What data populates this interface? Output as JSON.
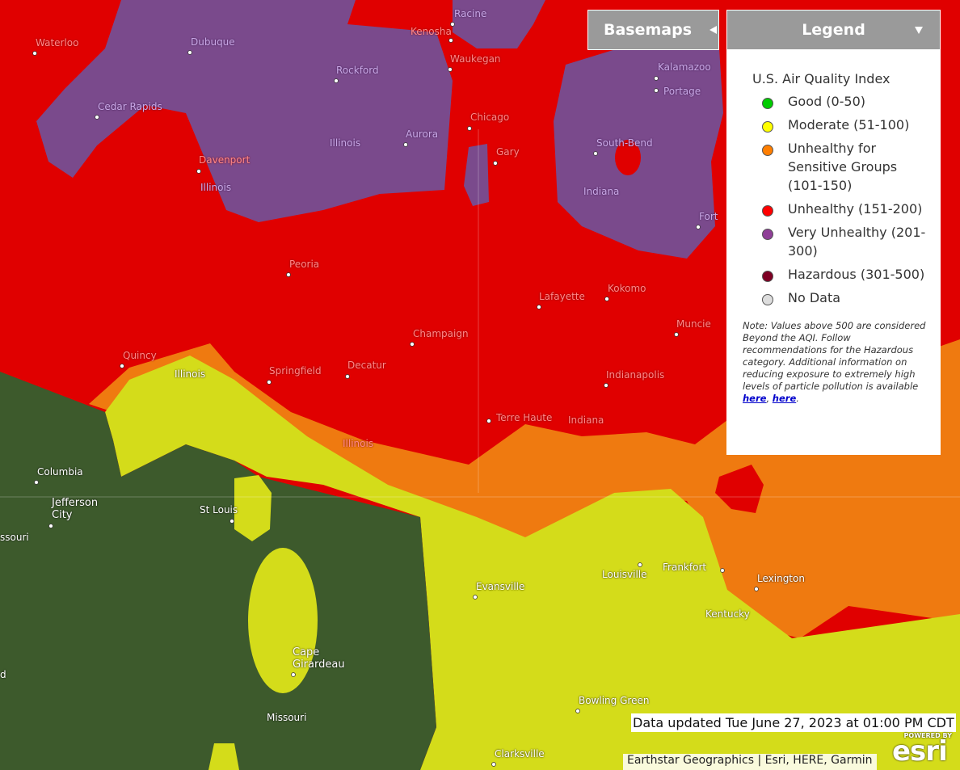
{
  "toolbar": {
    "basemaps": "Basemaps",
    "legend": "Legend"
  },
  "legend": {
    "title": "U.S. Air Quality Index",
    "items": [
      {
        "label": "Good (0-50)",
        "color": "#00cc00"
      },
      {
        "label": "Moderate (51-100)",
        "color": "#ffff00"
      },
      {
        "label": "Unhealthy for Sensitive Groups (101-150)",
        "color": "#ff7e00"
      },
      {
        "label": "Unhealthy (151-200)",
        "color": "#ff0000"
      },
      {
        "label": "Very Unhealthy (201-300)",
        "color": "#8f3f97"
      },
      {
        "label": "Hazardous (301-500)",
        "color": "#7e0023"
      },
      {
        "label": "No Data",
        "color": "#dddddd"
      }
    ],
    "note": "Note: Values above 500 are considered Beyond the AQI. Follow recommendations for the Hazardous category. Additional information on reducing exposure to extremely high levels of particle pollution is available",
    "link_1": "here",
    "link_separator": ",",
    "link_2": "here",
    "note_end": "."
  },
  "status": "Data updated Tue June 27, 2023 at 01:00 PM CDT",
  "attribution": "Earthstar Geographics | Esri, HERE, Garmin",
  "logo": {
    "tagline": "POWERED BY",
    "brand": "esri"
  },
  "map_labels": [
    "Waterloo",
    "Dubuque",
    "Racine",
    "Kenosha",
    "Waukegan",
    "Rockford",
    "Kalamazoo",
    "Portage",
    "Cedar Rapids",
    "Chicago",
    "Aurora",
    "Illinois",
    "South-Bend",
    "Gary",
    "Davenport",
    "Illinois",
    "Indiana",
    "Fort",
    "Peoria",
    "Kokomo",
    "Lafayette",
    "Muncie",
    "Champaign",
    "Quincy",
    "Illinois",
    "Springfield",
    "Decatur",
    "Indianapolis",
    "Terre Haute",
    "Indiana",
    "Illinois",
    "Columbia",
    "Jefferson City",
    "ssouri",
    "St Louis",
    "Evansville",
    "Louisville",
    "Frankfort",
    "Lexington",
    "Kentucky",
    "Cape Girardeau",
    "Missouri",
    "Bowling Green",
    "Clarksville",
    "d"
  ]
}
